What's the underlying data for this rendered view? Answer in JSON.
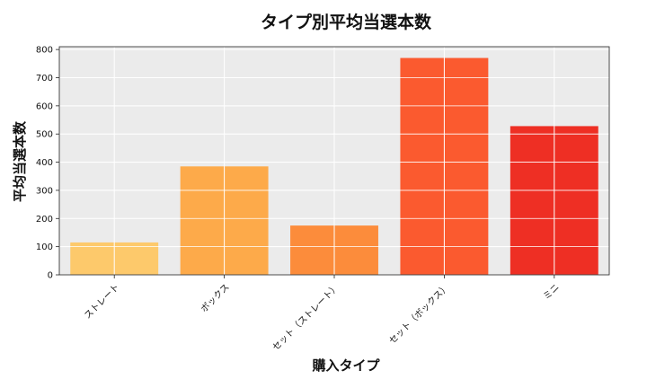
{
  "chart_data": {
    "type": "bar",
    "title": "タイプ別平均当選本数",
    "xlabel": "購入タイプ",
    "ylabel": "平均当選本数",
    "categories": [
      "ストレート",
      "ボックス",
      "セット（ストレート）",
      "セット（ボックス）",
      "ミニ"
    ],
    "values": [
      115,
      385,
      175,
      770,
      528
    ],
    "colors": [
      "#fdc96b",
      "#fdaa4a",
      "#fc8c3b",
      "#fb5a2f",
      "#ee2f24"
    ],
    "ylim": [
      0,
      810
    ],
    "yticks": [
      0,
      100,
      200,
      300,
      400,
      500,
      600,
      700,
      800
    ],
    "grid": true,
    "plot_background": "#ebebeb"
  }
}
